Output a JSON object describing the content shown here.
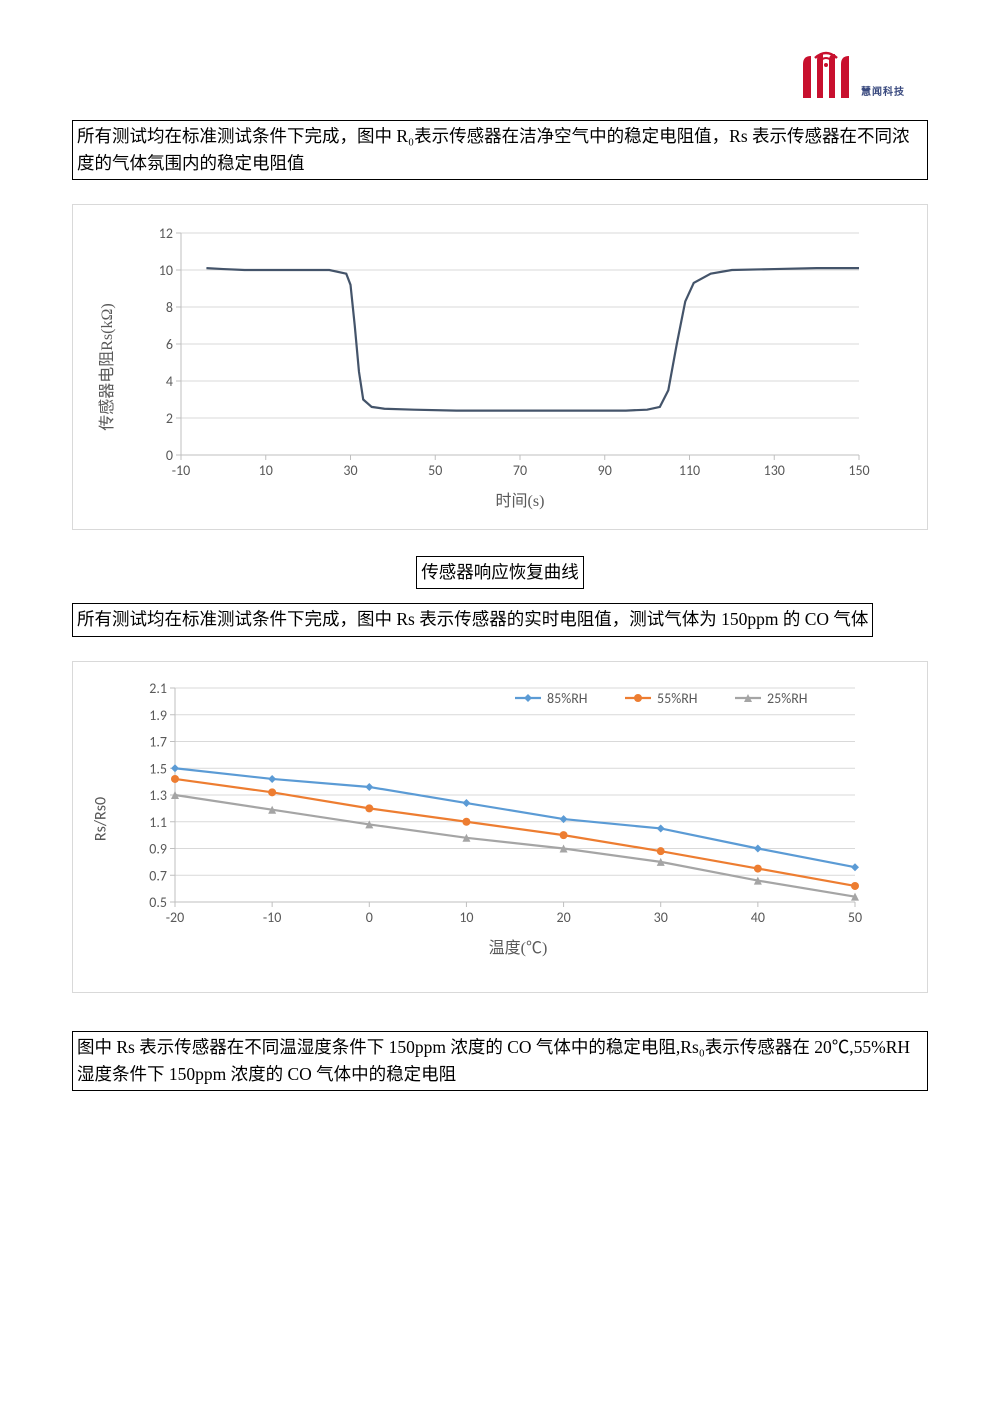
{
  "logo": {
    "primary_color": "#c8102e",
    "accent_color": "#3a4a7f",
    "subtitle": "慧闻科技"
  },
  "section1": {
    "intro": "所有测试均在标准测试条件下完成，图中 R₀表示传感器在洁净空气中的稳定电阻值，Rs 表示传感器在不同浓度的气体氛围内的稳定电阻值",
    "chart": {
      "type": "line",
      "ylabel": "传感器电阻Rs(kΩ)",
      "xlabel": "时间(s)",
      "xlim": [
        -10,
        150
      ],
      "ylim": [
        0,
        12
      ],
      "xtick_step": 20,
      "ytick_step": 2,
      "grid_color": "#d9d9d9",
      "background_color": "#ffffff",
      "label_fontsize": 16,
      "tick_fontsize": 14,
      "line_color": "#44546a",
      "line_width": 2.2,
      "data": [
        {
          "x": -4,
          "y": 10.1
        },
        {
          "x": 0,
          "y": 10.05
        },
        {
          "x": 5,
          "y": 10.0
        },
        {
          "x": 10,
          "y": 10.0
        },
        {
          "x": 15,
          "y": 10.0
        },
        {
          "x": 20,
          "y": 10.0
        },
        {
          "x": 25,
          "y": 10.0
        },
        {
          "x": 29,
          "y": 9.8
        },
        {
          "x": 30,
          "y": 9.2
        },
        {
          "x": 31,
          "y": 7.0
        },
        {
          "x": 32,
          "y": 4.5
        },
        {
          "x": 33,
          "y": 3.0
        },
        {
          "x": 35,
          "y": 2.6
        },
        {
          "x": 38,
          "y": 2.5
        },
        {
          "x": 45,
          "y": 2.45
        },
        {
          "x": 55,
          "y": 2.4
        },
        {
          "x": 65,
          "y": 2.4
        },
        {
          "x": 75,
          "y": 2.4
        },
        {
          "x": 85,
          "y": 2.4
        },
        {
          "x": 95,
          "y": 2.4
        },
        {
          "x": 100,
          "y": 2.45
        },
        {
          "x": 103,
          "y": 2.6
        },
        {
          "x": 105,
          "y": 3.5
        },
        {
          "x": 107,
          "y": 6.0
        },
        {
          "x": 109,
          "y": 8.3
        },
        {
          "x": 111,
          "y": 9.3
        },
        {
          "x": 115,
          "y": 9.8
        },
        {
          "x": 120,
          "y": 10.0
        },
        {
          "x": 130,
          "y": 10.05
        },
        {
          "x": 140,
          "y": 10.1
        },
        {
          "x": 150,
          "y": 10.1
        }
      ]
    }
  },
  "caption1": "传感器响应恢复曲线",
  "section2": {
    "intro": "所有测试均在标准测试条件下完成，图中 Rs 表示传感器的实时电阻值，测试气体为 150ppm 的 CO 气体",
    "chart": {
      "type": "line",
      "ylabel": "Rs/Rs0",
      "xlabel": "温度(℃)",
      "xlim": [
        -20,
        50
      ],
      "ylim": [
        0.5,
        2.1
      ],
      "xtick_step": 10,
      "ytick_step": 0.2,
      "grid_color": "#d9d9d9",
      "background_color": "#ffffff",
      "label_fontsize": 16,
      "tick_fontsize": 14,
      "line_width": 2.2,
      "legend_position": "top-right",
      "series": [
        {
          "name": "85%RH",
          "color": "#5b9bd5",
          "marker": "diamond",
          "data": [
            {
              "x": -20,
              "y": 1.5
            },
            {
              "x": -10,
              "y": 1.42
            },
            {
              "x": 0,
              "y": 1.36
            },
            {
              "x": 10,
              "y": 1.24
            },
            {
              "x": 20,
              "y": 1.12
            },
            {
              "x": 30,
              "y": 1.05
            },
            {
              "x": 40,
              "y": 0.9
            },
            {
              "x": 50,
              "y": 0.76
            }
          ]
        },
        {
          "name": "55%RH",
          "color": "#ed7d31",
          "marker": "circle",
          "data": [
            {
              "x": -20,
              "y": 1.42
            },
            {
              "x": -10,
              "y": 1.32
            },
            {
              "x": 0,
              "y": 1.2
            },
            {
              "x": 10,
              "y": 1.1
            },
            {
              "x": 20,
              "y": 1.0
            },
            {
              "x": 30,
              "y": 0.88
            },
            {
              "x": 40,
              "y": 0.75
            },
            {
              "x": 50,
              "y": 0.62
            }
          ]
        },
        {
          "name": "25%RH",
          "color": "#a5a5a5",
          "marker": "triangle",
          "data": [
            {
              "x": -20,
              "y": 1.3
            },
            {
              "x": -10,
              "y": 1.19
            },
            {
              "x": 0,
              "y": 1.08
            },
            {
              "x": 10,
              "y": 0.98
            },
            {
              "x": 20,
              "y": 0.9
            },
            {
              "x": 30,
              "y": 0.8
            },
            {
              "x": 40,
              "y": 0.66
            },
            {
              "x": 50,
              "y": 0.54
            }
          ]
        }
      ]
    }
  },
  "footnote": "图中 Rs 表示传感器在不同温湿度条件下 150ppm 浓度的 CO 气体中的稳定电阻,Rs₀表示传感器在 20℃,55%RH湿度条件下 150ppm 浓度的 CO 气体中的稳定电阻"
}
